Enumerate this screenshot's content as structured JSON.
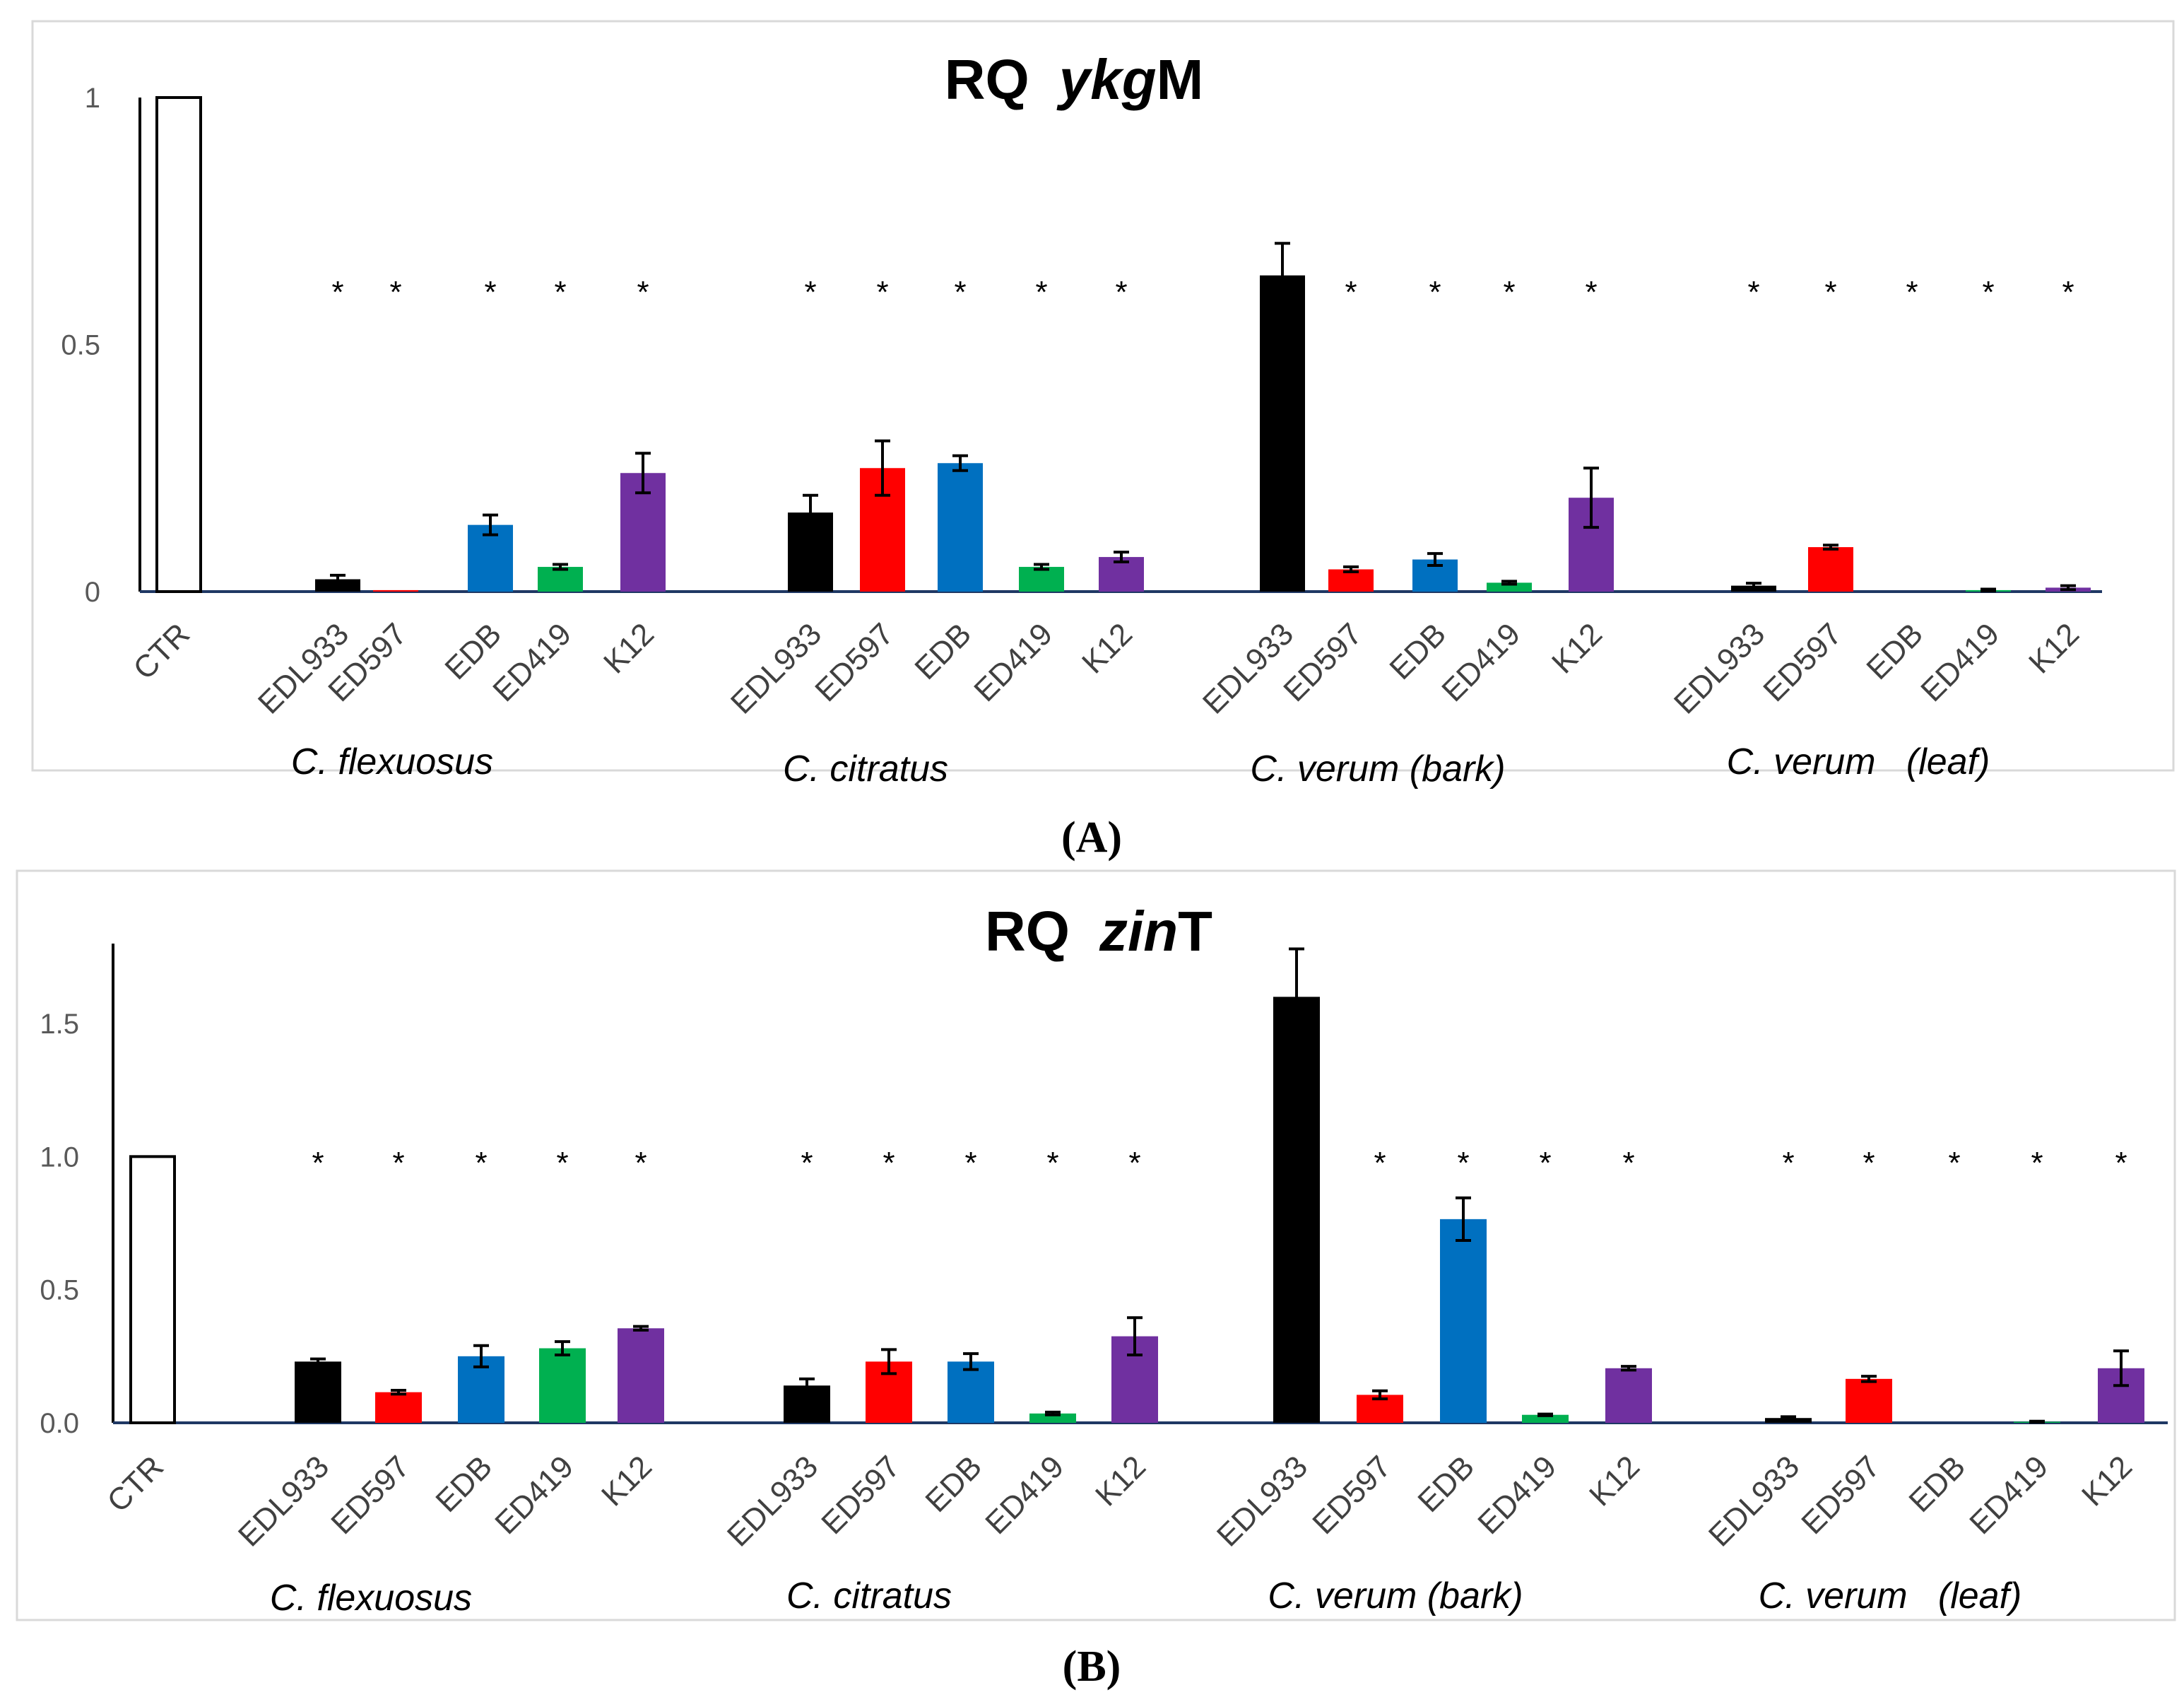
{
  "colors": {
    "CTR": "#ffffff",
    "EDL933": "#000000",
    "ED597": "#ff0000",
    "EDB": "#0070c0",
    "ED419": "#00b050",
    "K12": "#7030a0",
    "axis": "#1f3864",
    "frame": "#d9d9d9"
  },
  "chart_data": [
    {
      "type": "bar",
      "panel_label": "(A)",
      "title": {
        "prefix": "RQ",
        "gene_italic": "ykg",
        "gene_suffix": "M"
      },
      "ylim": [
        0,
        1
      ],
      "yticks": [
        "0",
        "0.5",
        "1"
      ],
      "ytick_values": [
        0,
        0.5,
        1
      ],
      "categories": [
        "CTR",
        "EDL933",
        "ED597",
        "EDB",
        "ED419",
        "K12",
        "EDL933",
        "ED597",
        "EDB",
        "ED419",
        "K12",
        "EDL933",
        "ED597",
        "EDB",
        "ED419",
        "K12",
        "EDL933",
        "ED597",
        "EDB",
        "ED419",
        "K12"
      ],
      "values": [
        1.0,
        0.025,
        0.003,
        0.135,
        0.05,
        0.24,
        0.16,
        0.25,
        0.26,
        0.05,
        0.07,
        0.64,
        0.045,
        0.065,
        0.018,
        0.19,
        0.012,
        0.09,
        0.0,
        0.003,
        0.008
      ],
      "errors": [
        0,
        0.008,
        0,
        0.02,
        0.005,
        0.04,
        0.035,
        0.055,
        0.015,
        0.005,
        0.01,
        0.065,
        0.005,
        0.012,
        0.003,
        0.06,
        0.005,
        0.004,
        0,
        0.002,
        0.004
      ],
      "significant": [
        false,
        true,
        true,
        true,
        true,
        true,
        true,
        true,
        true,
        true,
        true,
        false,
        true,
        true,
        true,
        true,
        true,
        true,
        true,
        true,
        true
      ],
      "groups": [
        "C. flexuosus",
        "C. citratus",
        "C. verum (bark)",
        "C. verum   (leaf)"
      ],
      "xlabel": "",
      "ylabel": ""
    },
    {
      "type": "bar",
      "panel_label": "(B)",
      "title": {
        "prefix": "RQ",
        "gene_italic": "zin",
        "gene_suffix": "T"
      },
      "ylim": [
        0,
        1.8
      ],
      "yticks": [
        "0.0",
        "0.5",
        "1.0",
        "1.5"
      ],
      "ytick_values": [
        0,
        0.5,
        1.0,
        1.5
      ],
      "categories": [
        "CTR",
        "EDL933",
        "ED597",
        "EDB",
        "ED419",
        "K12",
        "EDL933",
        "ED597",
        "EDB",
        "ED419",
        "K12",
        "EDL933",
        "ED597",
        "EDB",
        "ED419",
        "K12",
        "EDL933",
        "ED597",
        "EDB",
        "ED419",
        "K12"
      ],
      "values": [
        1.0,
        0.23,
        0.115,
        0.25,
        0.28,
        0.355,
        0.14,
        0.23,
        0.23,
        0.035,
        0.325,
        1.6,
        0.105,
        0.765,
        0.03,
        0.205,
        0.018,
        0.165,
        0.0,
        0.004,
        0.205
      ],
      "errors": [
        0,
        0.01,
        0.007,
        0.04,
        0.025,
        0.007,
        0.025,
        0.045,
        0.03,
        0.005,
        0.07,
        0.18,
        0.015,
        0.08,
        0.003,
        0.007,
        0.005,
        0.01,
        0,
        0.002,
        0.065
      ],
      "significant": [
        false,
        true,
        true,
        true,
        true,
        true,
        true,
        true,
        true,
        true,
        true,
        false,
        true,
        true,
        true,
        true,
        true,
        true,
        true,
        true,
        true
      ],
      "groups": [
        "C. flexuosus",
        "C. citratus",
        "C. verum (bark)",
        "C. verum   (leaf)"
      ],
      "xlabel": "",
      "ylabel": ""
    }
  ],
  "significance_marker": "*"
}
